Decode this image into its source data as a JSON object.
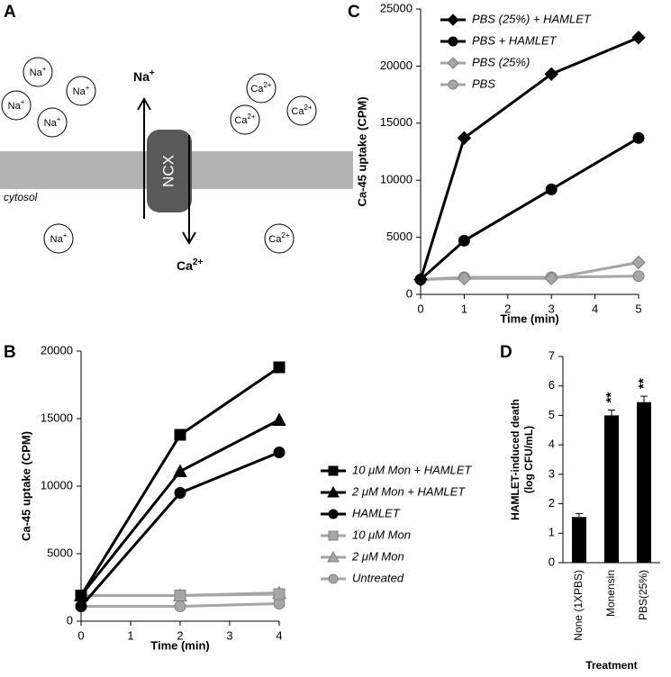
{
  "diagram": {
    "panel_label": "A",
    "membrane_label": "cytosol",
    "transporter": "NCX",
    "out_arrow": {
      "symbol": "Na",
      "charge": "+"
    },
    "in_arrow": {
      "symbol": "Ca",
      "charge": "2+"
    },
    "ions": [
      {
        "symbol": "Na",
        "charge": "+"
      },
      {
        "symbol": "Na",
        "charge": "+"
      },
      {
        "symbol": "Na",
        "charge": "+"
      },
      {
        "symbol": "Na",
        "charge": "+"
      },
      {
        "symbol": "Ca",
        "charge": "2+"
      },
      {
        "symbol": "Ca",
        "charge": "2+"
      },
      {
        "symbol": "Ca",
        "charge": "2+"
      },
      {
        "symbol": "Na",
        "charge": "+"
      },
      {
        "symbol": "Ca",
        "charge": "2+"
      }
    ]
  },
  "chart_data": [
    {
      "type": "line",
      "panel_label": "B",
      "xlabel": "Time (min)",
      "ylabel": "Ca-45 uptake (CPM)",
      "x": [
        0,
        2,
        4
      ],
      "xlim": [
        0,
        4
      ],
      "xticks": [
        0,
        1,
        2,
        3,
        4
      ],
      "ylim": [
        0,
        20000
      ],
      "yticks": [
        0,
        5000,
        10000,
        15000,
        20000
      ],
      "series": [
        {
          "name": "10 μM Mon + HAMLET",
          "color": "#000000",
          "marker": "square",
          "values": [
            1900,
            13800,
            18800
          ]
        },
        {
          "name": "2 μM Mon + HAMLET",
          "color": "#000000",
          "marker": "triangle",
          "values": [
            1900,
            11100,
            14900
          ]
        },
        {
          "name": "HAMLET",
          "color": "#000000",
          "marker": "circle",
          "values": [
            1100,
            9500,
            12500
          ]
        },
        {
          "name": "10 μM Mon",
          "color": "#a6a6a6",
          "marker": "square",
          "values": [
            1900,
            1900,
            2000
          ]
        },
        {
          "name": "2 μM Mon",
          "color": "#a6a6a6",
          "marker": "triangle",
          "values": [
            1900,
            1900,
            2100
          ]
        },
        {
          "name": "Untreated",
          "color": "#a6a6a6",
          "marker": "circle",
          "values": [
            1100,
            1100,
            1300
          ]
        }
      ]
    },
    {
      "type": "line",
      "panel_label": "C",
      "xlabel": "Time (min)",
      "ylabel": "Ca-45 uptake (CPM)",
      "x": [
        0,
        1,
        3,
        5
      ],
      "xlim": [
        0,
        5
      ],
      "xticks": [
        0,
        1,
        2,
        3,
        4,
        5
      ],
      "ylim": [
        0,
        25000
      ],
      "yticks": [
        0,
        5000,
        10000,
        15000,
        20000,
        25000
      ],
      "series": [
        {
          "name": "PBS (25%) + HAMLET",
          "color": "#000000",
          "marker": "diamond",
          "values": [
            1300,
            13700,
            19300,
            22500
          ]
        },
        {
          "name": "PBS + HAMLET",
          "color": "#000000",
          "marker": "circle",
          "values": [
            1300,
            4700,
            9200,
            13700
          ]
        },
        {
          "name": "PBS (25%)",
          "color": "#a6a6a6",
          "marker": "diamond",
          "values": [
            1300,
            1400,
            1400,
            2800
          ]
        },
        {
          "name": "PBS",
          "color": "#a6a6a6",
          "marker": "circle",
          "values": [
            1300,
            1500,
            1500,
            1600
          ]
        }
      ]
    },
    {
      "type": "bar",
      "panel_label": "D",
      "xlabel": "Treatment",
      "ylabel": [
        "HAMLET-induced death",
        "(log CFU/mL)"
      ],
      "categories": [
        "None (1XPBS)",
        "Monensin",
        "PBS(25%)"
      ],
      "values": [
        1.55,
        5.0,
        5.45
      ],
      "errors": [
        0.12,
        0.18,
        0.2
      ],
      "significance": [
        null,
        "**",
        "**"
      ],
      "color": "#000000",
      "ylim": [
        0,
        7
      ],
      "yticks": [
        0,
        1,
        2,
        3,
        4,
        5,
        6,
        7
      ]
    }
  ]
}
